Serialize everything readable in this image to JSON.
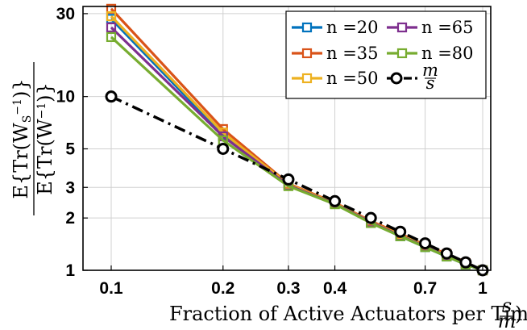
{
  "chart_data": {
    "type": "line",
    "xscale": "log",
    "yscale": "log",
    "xlim": [
      0.1,
      1
    ],
    "ylim": [
      1,
      33
    ],
    "grid": true,
    "legend_placement": "top-right",
    "xlabel": "Fraction of Active Actuators per Time",
    "xlabel_fraction_num": "s",
    "xlabel_fraction_den": "m",
    "ylabel_num": "E{Tr(W_S^-1)}",
    "ylabel_den": "E{Tr(W^-1)}",
    "xticks": [
      0.1,
      0.2,
      0.3,
      0.4,
      0.7,
      1
    ],
    "xtick_labels": [
      "0.1",
      "0.2",
      "0.3",
      "0.4",
      "0.7",
      "1"
    ],
    "yticks": [
      1,
      2,
      3,
      5,
      10,
      30
    ],
    "ytick_labels": [
      "1",
      "2",
      "3",
      "5",
      "10",
      "30"
    ],
    "x": [
      0.1,
      0.2,
      0.3,
      0.4,
      0.5,
      0.6,
      0.7,
      0.8,
      0.9,
      1.0
    ],
    "series": [
      {
        "name": "n =20",
        "color": "#0072BD",
        "marker": "square",
        "dash": "solid",
        "values": [
          28,
          6.0,
          3.1,
          2.42,
          1.88,
          1.57,
          1.36,
          1.2,
          1.08,
          1.0
        ]
      },
      {
        "name": "n =35",
        "color": "#D95319",
        "marker": "square",
        "dash": "solid",
        "values": [
          32,
          6.5,
          3.15,
          2.45,
          1.92,
          1.62,
          1.4,
          1.24,
          1.1,
          1.0
        ]
      },
      {
        "name": "n =50",
        "color": "#EDB120",
        "marker": "square",
        "dash": "solid",
        "values": [
          29,
          6.2,
          3.12,
          2.43,
          1.9,
          1.6,
          1.38,
          1.22,
          1.09,
          1.0
        ]
      },
      {
        "name": "n =65",
        "color": "#7E2F8E",
        "marker": "square",
        "dash": "solid",
        "values": [
          25,
          5.9,
          3.08,
          2.41,
          1.89,
          1.58,
          1.37,
          1.21,
          1.09,
          1.0
        ]
      },
      {
        "name": "n =80",
        "color": "#77AC30",
        "marker": "square",
        "dash": "solid",
        "values": [
          22,
          5.6,
          3.05,
          2.4,
          1.87,
          1.57,
          1.36,
          1.2,
          1.08,
          1.0
        ]
      },
      {
        "name": "m/s",
        "color": "#000000",
        "marker": "circle",
        "dash": "dashdot",
        "values": [
          10,
          5,
          3.333,
          2.5,
          2,
          1.667,
          1.429,
          1.25,
          1.111,
          1.0
        ]
      }
    ]
  }
}
